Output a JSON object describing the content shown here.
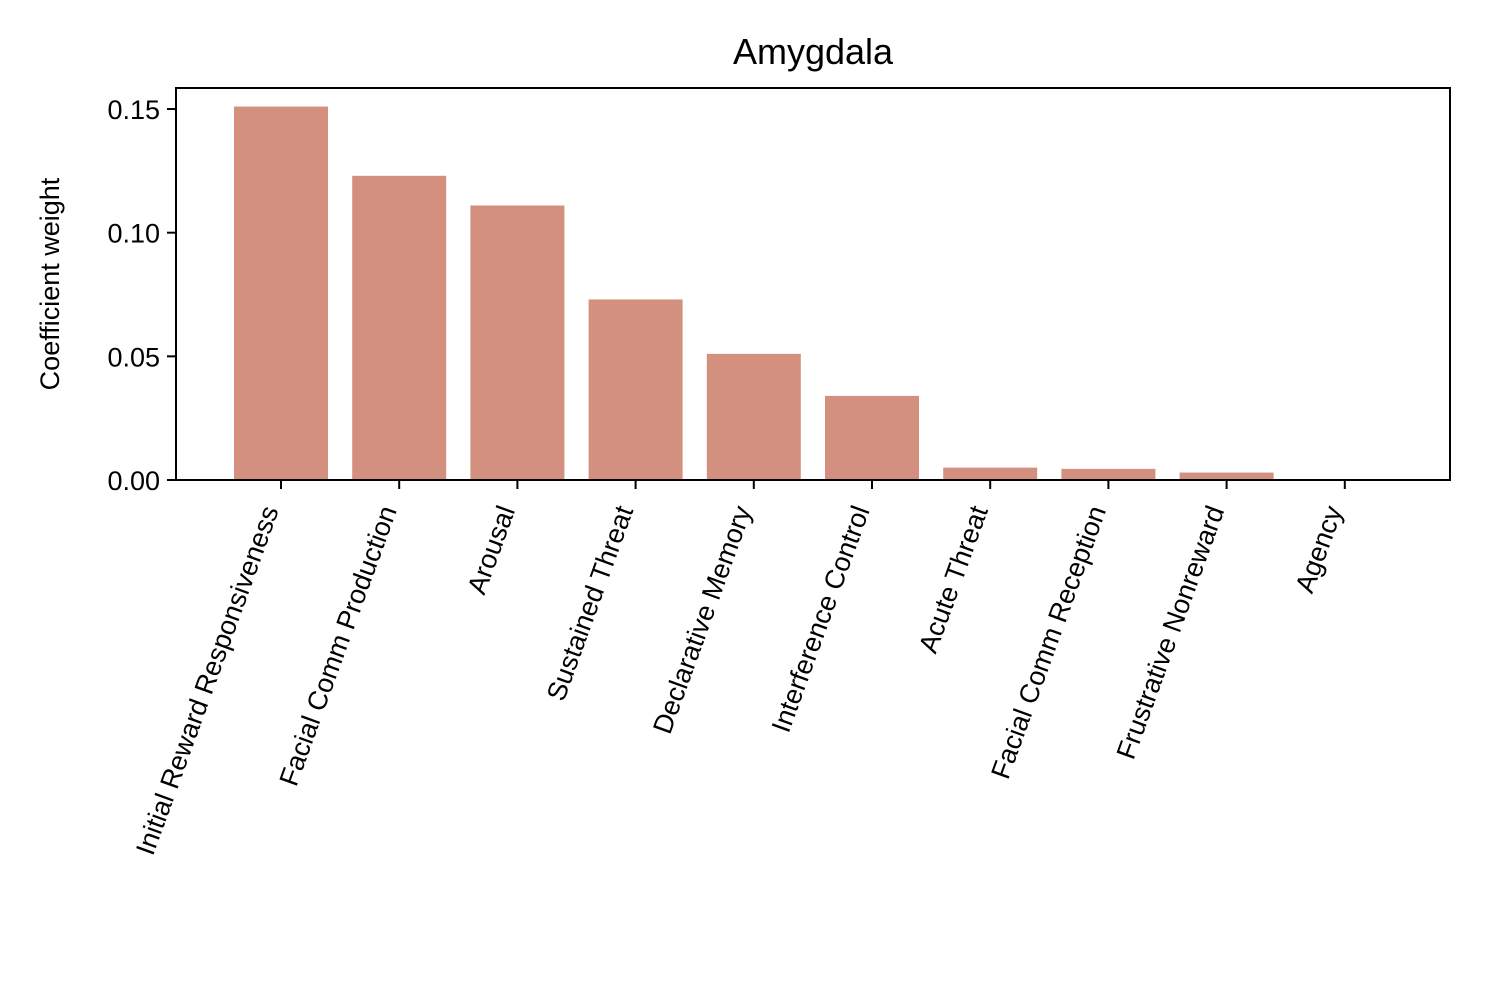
{
  "chart_data": {
    "type": "bar",
    "title": "Amygdala",
    "xlabel": "",
    "ylabel": "Coefficient weight",
    "categories": [
      "Initial Reward Responsiveness",
      "Facial Comm Production",
      "Arousal",
      "Sustained Threat",
      "Declarative Memory",
      "Interference Control",
      "Acute Threat",
      "Facial Comm Reception",
      "Frustrative Nonreward",
      "Agency"
    ],
    "values": [
      0.151,
      0.123,
      0.111,
      0.073,
      0.051,
      0.034,
      0.005,
      0.0045,
      0.003,
      0.0
    ],
    "ylim": [
      0,
      0.1585
    ],
    "yticks": [
      "0.00",
      "0.05",
      "0.10",
      "0.15"
    ],
    "grid": false,
    "bar_color": "#d4907f"
  }
}
